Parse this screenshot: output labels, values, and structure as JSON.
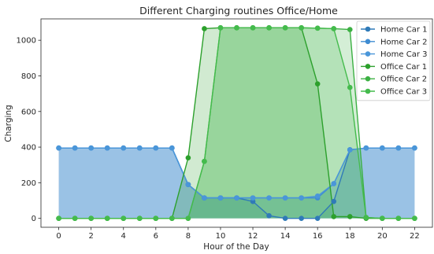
{
  "chart_data": {
    "type": "area",
    "title": "Different Charging routines Office/Home",
    "xlabel": "Hour of the Day",
    "ylabel": "Charging",
    "xlim": [
      -1.1,
      23.1
    ],
    "ylim": [
      -50,
      1120
    ],
    "xticks": [
      0,
      2,
      4,
      6,
      8,
      10,
      12,
      14,
      16,
      18,
      20,
      22
    ],
    "yticks": [
      0,
      200,
      400,
      600,
      800,
      1000
    ],
    "grid": false,
    "legend_position": "top-right",
    "x": [
      0,
      1,
      2,
      3,
      4,
      5,
      6,
      7,
      8,
      9,
      10,
      11,
      12,
      13,
      14,
      15,
      16,
      17,
      18,
      19,
      20,
      21,
      22
    ],
    "series": [
      {
        "name": "Home Car 1",
        "color": "#2f7ab8",
        "values": [
          395,
          395,
          395,
          395,
          395,
          395,
          395,
          395,
          190,
          115,
          115,
          115,
          95,
          15,
          0,
          0,
          0,
          95,
          385,
          395,
          395,
          395,
          395
        ]
      },
      {
        "name": "Home Car 2",
        "color": "#3f8cd2",
        "values": [
          395,
          395,
          395,
          395,
          395,
          395,
          395,
          395,
          190,
          115,
          115,
          115,
          115,
          115,
          115,
          115,
          115,
          195,
          385,
          395,
          395,
          395,
          395
        ]
      },
      {
        "name": "Home Car 3",
        "color": "#4a96d9",
        "values": [
          395,
          395,
          395,
          395,
          395,
          395,
          395,
          395,
          190,
          115,
          115,
          115,
          115,
          115,
          115,
          115,
          125,
          195,
          385,
          395,
          395,
          395,
          395
        ]
      },
      {
        "name": "Office Car 1",
        "color": "#2ca02c",
        "values": [
          0,
          0,
          0,
          0,
          0,
          0,
          0,
          0,
          340,
          1065,
          1070,
          1070,
          1070,
          1070,
          1070,
          1070,
          755,
          10,
          10,
          0,
          0,
          0,
          0
        ]
      },
      {
        "name": "Office Car 2",
        "color": "#3cb043",
        "values": [
          0,
          0,
          0,
          0,
          0,
          0,
          0,
          0,
          0,
          320,
          1070,
          1070,
          1070,
          1070,
          1070,
          1070,
          1068,
          1065,
          1060,
          5,
          0,
          0,
          0
        ]
      },
      {
        "name": "Office Car 3",
        "color": "#44bb4c",
        "values": [
          0,
          0,
          0,
          0,
          0,
          0,
          0,
          0,
          0,
          320,
          1070,
          1070,
          1070,
          1070,
          1070,
          1070,
          1068,
          1065,
          735,
          5,
          0,
          0,
          0
        ]
      }
    ]
  }
}
